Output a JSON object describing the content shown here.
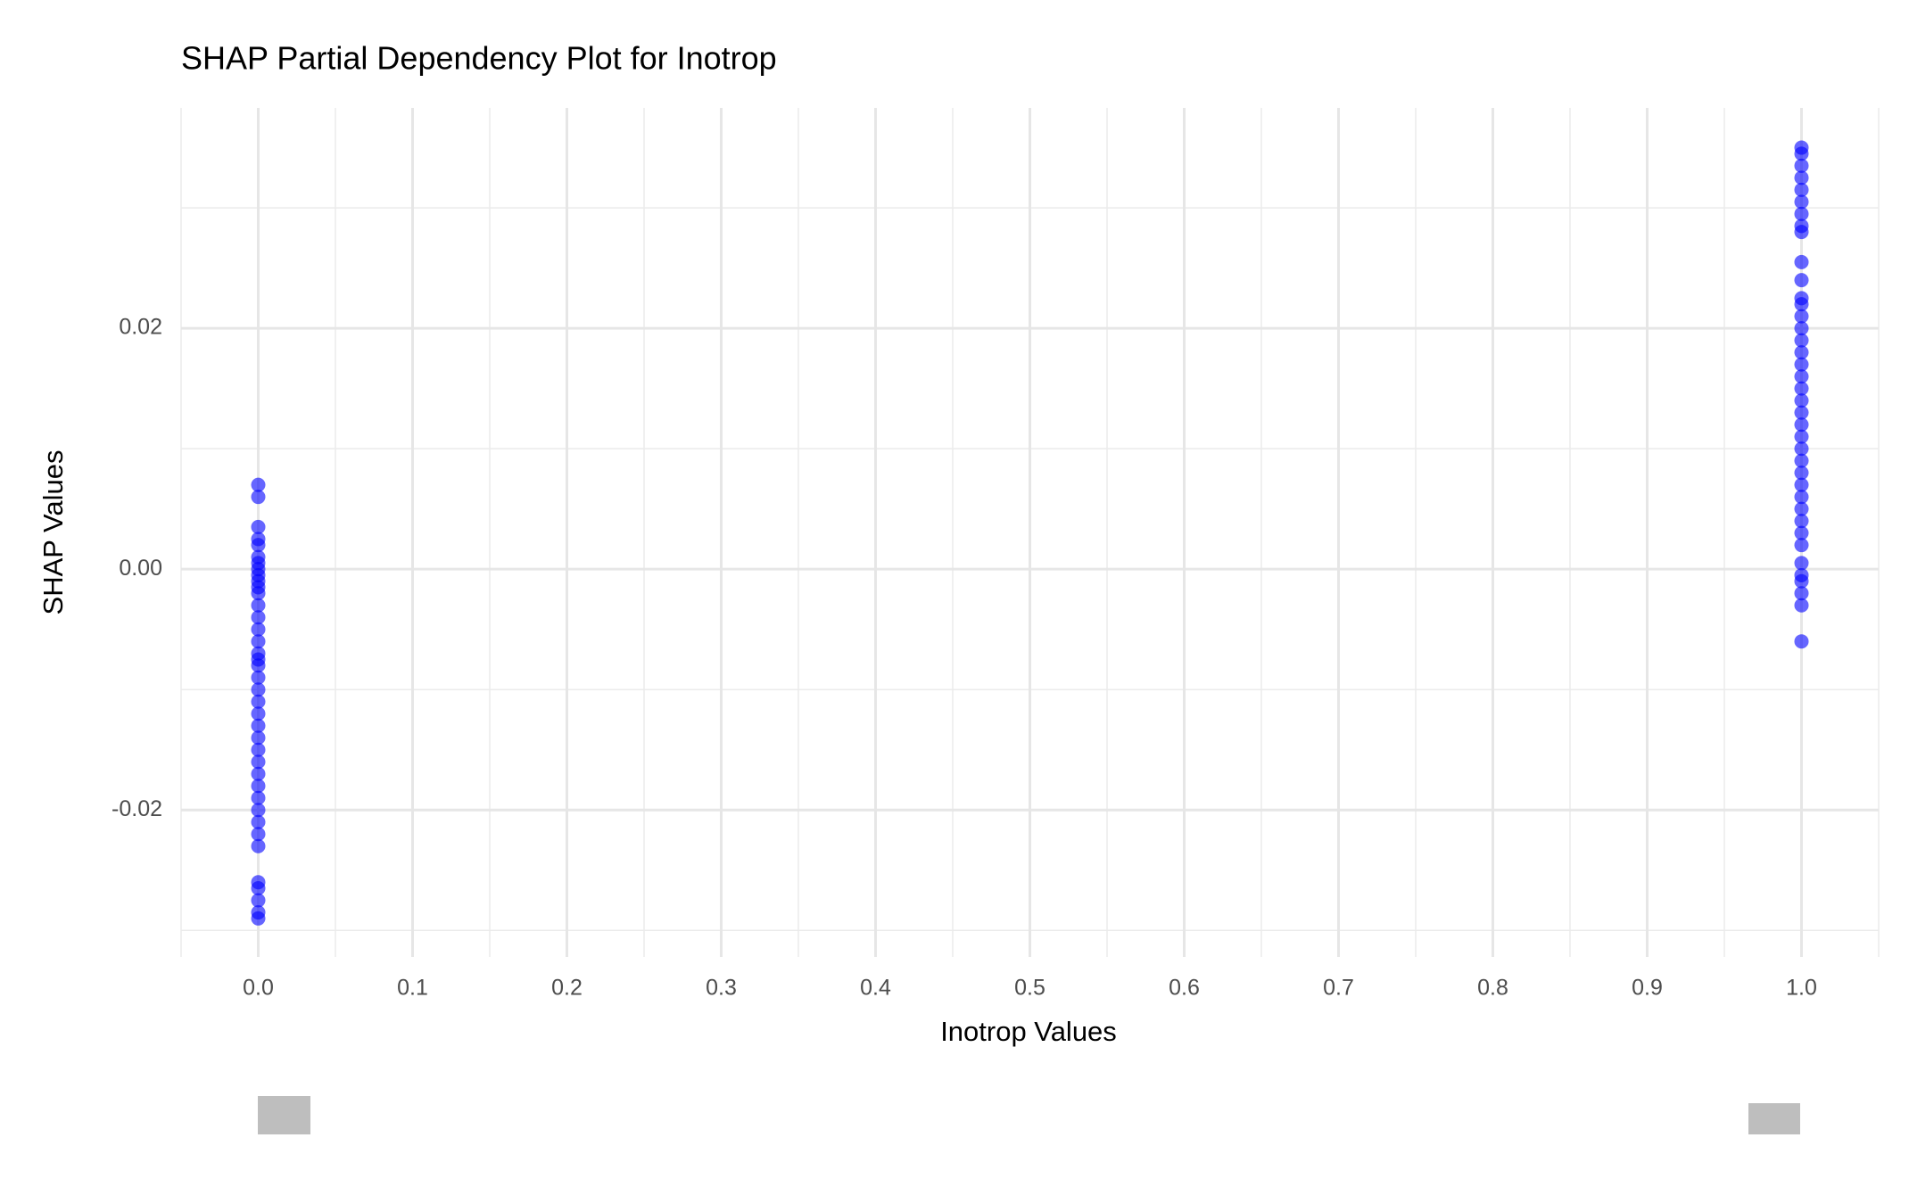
{
  "chart_data": {
    "type": "scatter",
    "title": "SHAP Partial Dependency Plot for Inotrop",
    "x_label": "Inotrop Values",
    "y_label": "SHAP Values",
    "xlim": [
      -0.05,
      1.05
    ],
    "ylim": [
      -0.0322,
      0.0383
    ],
    "xticks": [
      {
        "value": 0,
        "label": "0.0"
      },
      0.1,
      0.2,
      0.3,
      0.4,
      0.5,
      0.6,
      0.7,
      0.8,
      0.9,
      {
        "value": 1,
        "label": "1.0"
      }
    ],
    "yticks": [
      {
        "value": -0.02,
        "label": "-0.02"
      },
      {
        "value": 0,
        "label": "0.00"
      },
      0.02
    ],
    "x_minor_grid": [
      -0.05,
      0.05,
      0.15,
      0.25,
      0.35,
      0.45,
      0.55,
      0.65,
      0.75,
      0.85,
      0.95,
      1.05
    ],
    "y_minor_grid": [
      -0.03,
      -0.01,
      0.01,
      0.03
    ],
    "grid": true,
    "color": "#0000ff",
    "series": [
      {
        "x": [
          0,
          0,
          0,
          0,
          0,
          0,
          0,
          0,
          0,
          0,
          0,
          0,
          0,
          0,
          0,
          0,
          0,
          0,
          0,
          0,
          0,
          0,
          0,
          0,
          0,
          0,
          0,
          0,
          0,
          0,
          0,
          0,
          0,
          0,
          0,
          0,
          0,
          0,
          0,
          1,
          1,
          1,
          1,
          1,
          1,
          1,
          1,
          1,
          1,
          1,
          1,
          1,
          1,
          1,
          1,
          1,
          1,
          1,
          1,
          1,
          1,
          1,
          1,
          1,
          1,
          1,
          1,
          1,
          1,
          1,
          1,
          1,
          1,
          1,
          1,
          1,
          1,
          1
        ],
        "values": [
          0.007,
          0.006,
          0.0035,
          0.0025,
          0.002,
          0.001,
          0.0005,
          0,
          -0.0005,
          -0.001,
          -0.0015,
          -0.002,
          -0.003,
          -0.004,
          -0.005,
          -0.006,
          -0.007,
          -0.0075,
          -0.008,
          -0.009,
          -0.01,
          -0.011,
          -0.012,
          -0.013,
          -0.014,
          -0.015,
          -0.016,
          -0.017,
          -0.018,
          -0.019,
          -0.02,
          -0.021,
          -0.022,
          -0.023,
          -0.026,
          -0.0265,
          -0.0275,
          -0.0285,
          -0.029,
          0.035,
          0.0345,
          0.0335,
          0.0325,
          0.0315,
          0.0305,
          0.0295,
          0.0285,
          0.028,
          0.0255,
          0.024,
          0.0225,
          0.022,
          0.021,
          0.02,
          0.019,
          0.018,
          0.017,
          0.016,
          0.015,
          0.014,
          0.013,
          0.012,
          0.011,
          0.01,
          0.009,
          0.008,
          0.007,
          0.006,
          0.005,
          0.004,
          0.003,
          0.002,
          0.0005,
          -0.0005,
          -0.001,
          -0.002,
          -0.003,
          -0.006
        ]
      }
    ]
  }
}
